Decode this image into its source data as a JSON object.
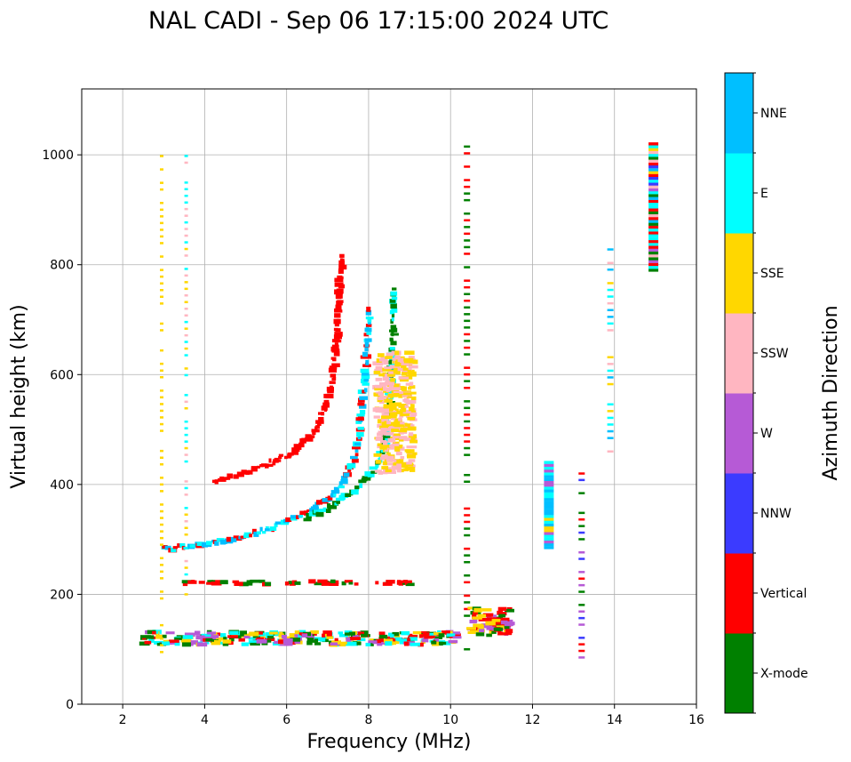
{
  "chart_data": {
    "type": "scatter",
    "title": "NAL CADI - Sep 06 17:15:00 2024 UTC",
    "xlabel": "Frequency (MHz)",
    "ylabel": "Virtual height (km)",
    "xlim": [
      1,
      16
    ],
    "ylim": [
      0,
      1120
    ],
    "xticks": [
      2,
      4,
      6,
      8,
      10,
      12,
      14,
      16
    ],
    "yticks": [
      0,
      200,
      400,
      600,
      800,
      1000
    ],
    "grid": true,
    "colorbar": {
      "label": "Azimuth Direction",
      "categories": [
        {
          "name": "X-mode",
          "color": "#008000"
        },
        {
          "name": "Vertical",
          "color": "#ff0000"
        },
        {
          "name": "NNW",
          "color": "#3b3bff"
        },
        {
          "name": "W",
          "color": "#b65ad6"
        },
        {
          "name": "SSW",
          "color": "#ffb6c1"
        },
        {
          "name": "SSE",
          "color": "#ffd700"
        },
        {
          "name": "E",
          "color": "#00ffff"
        },
        {
          "name": "NNE",
          "color": "#00bfff"
        }
      ]
    },
    "traces": [
      {
        "name": "E-layer echo (100-130 km)",
        "x_range": [
          2.5,
          10.2
        ],
        "y_range": [
          108,
          132
        ],
        "category_mix": [
          "Vertical",
          "E",
          "X-mode",
          "W",
          "SSE"
        ]
      },
      {
        "name": "Es layer (~220 km)",
        "x_range": [
          3.5,
          9.1
        ],
        "y_range": [
          218,
          224
        ],
        "category_mix": [
          "Vertical",
          "X-mode"
        ]
      },
      {
        "name": "F-layer o-trace",
        "points": [
          [
            3.0,
            282
          ],
          [
            3.5,
            287
          ],
          [
            4.0,
            292
          ],
          [
            4.5,
            298
          ],
          [
            5.0,
            306
          ],
          [
            5.5,
            318
          ],
          [
            6.0,
            332
          ],
          [
            6.5,
            350
          ],
          [
            7.0,
            372
          ],
          [
            7.3,
            395
          ],
          [
            7.5,
            420
          ],
          [
            7.7,
            460
          ],
          [
            7.8,
            520
          ],
          [
            7.9,
            580
          ],
          [
            7.95,
            650
          ],
          [
            8.0,
            720
          ]
        ],
        "category_mix": [
          "Vertical",
          "E",
          "NNE"
        ]
      },
      {
        "name": "F-layer x-trace",
        "points": [
          [
            6.5,
            340
          ],
          [
            7.0,
            355
          ],
          [
            7.5,
            380
          ],
          [
            7.9,
            405
          ],
          [
            8.1,
            425
          ],
          [
            8.3,
            450
          ],
          [
            8.45,
            480
          ],
          [
            8.5,
            530
          ],
          [
            8.55,
            600
          ],
          [
            8.6,
            680
          ],
          [
            8.6,
            760
          ]
        ],
        "category_mix": [
          "X-mode",
          "E"
        ]
      },
      {
        "name": "Second-hop trace",
        "points": [
          [
            4.2,
            405
          ],
          [
            5.0,
            420
          ],
          [
            5.6,
            440
          ],
          [
            6.2,
            460
          ],
          [
            6.6,
            490
          ],
          [
            6.9,
            530
          ],
          [
            7.1,
            580
          ],
          [
            7.2,
            640
          ],
          [
            7.25,
            700
          ],
          [
            7.3,
            760
          ],
          [
            7.35,
            820
          ]
        ],
        "category_mix": [
          "Vertical"
        ]
      },
      {
        "name": "SSE / SSW cluster",
        "x_range": [
          8.2,
          9.1
        ],
        "y_range": [
          420,
          640
        ],
        "category_mix": [
          "SSE",
          "SSW"
        ]
      },
      {
        "name": "Vertical dotted column",
        "x": 2.95,
        "y_range": [
          95,
          1010
        ],
        "category_mix": [
          "SSE"
        ]
      },
      {
        "name": "Vertical dotted column",
        "x": 3.55,
        "y_range": [
          200,
          1010
        ],
        "category_mix": [
          "E",
          "SSE",
          "SSW"
        ]
      },
      {
        "name": "Vertical dashed column",
        "x": 10.4,
        "y_range": [
          100,
          1015
        ],
        "category_mix": [
          "X-mode",
          "Vertical"
        ]
      },
      {
        "name": "Cluster ~10.5-11.5 MHz",
        "x_range": [
          10.5,
          11.5
        ],
        "y_range": [
          125,
          175
        ],
        "category_mix": [
          "W",
          "SSE",
          "X-mode",
          "Vertical"
        ]
      },
      {
        "name": "Stack 12.4 MHz",
        "x": 12.4,
        "y_range": [
          285,
          440
        ],
        "category_mix": [
          "W",
          "E",
          "SSE",
          "NNE"
        ]
      },
      {
        "name": "Stack 13.2 MHz",
        "x": 13.2,
        "y_range": [
          85,
          420
        ],
        "category_mix": [
          "NNW",
          "W",
          "Vertical",
          "X-mode"
        ]
      },
      {
        "name": "Stack 13.9 MHz",
        "x": 13.9,
        "y_range": [
          460,
          840
        ],
        "category_mix": [
          "E",
          "SSE",
          "SSW",
          "NNE"
        ]
      },
      {
        "name": "Stack 14.95 MHz",
        "x": 14.95,
        "y_range": [
          790,
          1020
        ],
        "category_mix": [
          "E",
          "Vertical",
          "NNW",
          "SSE",
          "W",
          "NNE",
          "SSW",
          "X-mode"
        ]
      }
    ]
  }
}
